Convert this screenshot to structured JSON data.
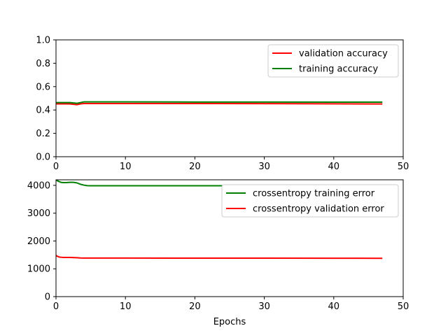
{
  "chart_data": [
    {
      "type": "line",
      "xlabel": "",
      "ylabel": "",
      "xlim": [
        0,
        50
      ],
      "ylim": [
        0,
        1.0
      ],
      "xticks": [
        0,
        10,
        20,
        30,
        40,
        50
      ],
      "yticks": [
        0.0,
        0.2,
        0.4,
        0.6,
        0.8,
        1.0
      ],
      "xtick_labels": [
        "0",
        "10",
        "20",
        "30",
        "40",
        "50"
      ],
      "ytick_labels": [
        "0.0",
        "0.2",
        "0.4",
        "0.6",
        "0.8",
        "1.0"
      ],
      "grid": false,
      "legend": "top-right",
      "series": [
        {
          "name": "validation accuracy",
          "color": "#ff0000",
          "x": [
            0,
            1,
            2,
            3,
            3.5,
            4,
            5,
            10,
            20,
            30,
            40,
            47
          ],
          "values": [
            0.452,
            0.452,
            0.452,
            0.445,
            0.452,
            0.455,
            0.455,
            0.455,
            0.455,
            0.454,
            0.453,
            0.451
          ]
        },
        {
          "name": "training accuracy",
          "color": "#008000",
          "x": [
            0,
            1,
            2,
            3,
            4,
            5,
            10,
            20,
            30,
            40,
            47
          ],
          "values": [
            0.463,
            0.463,
            0.463,
            0.457,
            0.469,
            0.469,
            0.469,
            0.468,
            0.468,
            0.467,
            0.467
          ]
        }
      ]
    },
    {
      "type": "line",
      "xlabel": "Epochs",
      "ylabel": "",
      "xlim": [
        0,
        50
      ],
      "ylim": [
        0,
        4200
      ],
      "xticks": [
        0,
        10,
        20,
        30,
        40,
        50
      ],
      "yticks": [
        0,
        1000,
        2000,
        3000,
        4000
      ],
      "xtick_labels": [
        "0",
        "10",
        "20",
        "30",
        "40",
        "50"
      ],
      "ytick_labels": [
        "0",
        "1000",
        "2000",
        "3000",
        "4000"
      ],
      "grid": false,
      "legend": "top-right",
      "series": [
        {
          "name": "crossentropy training error",
          "color": "#008000",
          "x": [
            0,
            0.3,
            0.7,
            1,
            1.5,
            2,
            2.5,
            3,
            3.5,
            4,
            4.5,
            5,
            10,
            20,
            24
          ],
          "values": [
            4200,
            4150,
            4110,
            4100,
            4100,
            4110,
            4110,
            4090,
            4040,
            4010,
            3990,
            3985,
            3985,
            3985,
            3985
          ]
        },
        {
          "name": "crossentropy validation error",
          "color": "#ff0000",
          "x": [
            0,
            0.2,
            0.5,
            1,
            2,
            3,
            3.5,
            4,
            5,
            10,
            20,
            30,
            40,
            47
          ],
          "values": [
            1480,
            1450,
            1420,
            1410,
            1410,
            1400,
            1390,
            1385,
            1385,
            1385,
            1383,
            1382,
            1380,
            1378
          ]
        }
      ]
    }
  ]
}
